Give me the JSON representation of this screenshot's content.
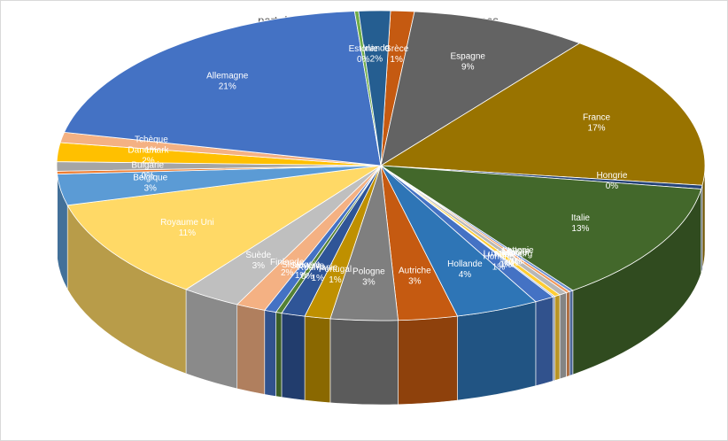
{
  "chart_data": {
    "type": "pie",
    "title": "part de chaque pays aux recettes européennes",
    "categories": [
      "Grèce",
      "Espagne",
      "France",
      "Hongrie",
      "Italie",
      "Lettonie",
      "Chypre",
      "Lituanie",
      "Luxembourg",
      "Malte",
      "Hongrie",
      "Hollande",
      "Autriche",
      "Pologne",
      "Portugal",
      "Roumanie",
      "Slovénie",
      "Slovaquie",
      "Finlande",
      "Suède",
      "Royaume Uni",
      "Belgique",
      "Bulgarie",
      null,
      "Danemark",
      "Tchèque",
      "Allemagne",
      "Estonie",
      "Irlande"
    ],
    "values": [
      1.2,
      9,
      16.8,
      0.4,
      12.7,
      0.2,
      0.2,
      0.4,
      0.3,
      0.1,
      1,
      4.2,
      3,
      3.4,
      1.3,
      1.2,
      0.3,
      0.6,
      1.5,
      3,
      10.8,
      3.3,
      0.3,
      1,
      2,
      1.1,
      20.6,
      0.2,
      1.6
    ],
    "value_labels": [
      "1%",
      "9%",
      "17%",
      "0%",
      "13%",
      "0%",
      "0%",
      "0%",
      "0%",
      "0%",
      "1%",
      "4%",
      "3%",
      "3%",
      "1%",
      "1%",
      "0%",
      "1%",
      "2%",
      "3%",
      "11%",
      "3%",
      "0%",
      null,
      "2%",
      "1%",
      "21%",
      "0%",
      "2%"
    ],
    "colors": [
      "#c55a11",
      "#636363",
      "#997300",
      "#264478",
      "#43682b",
      "#698ed0",
      "#f1975a",
      "#b7b7b7",
      "#ffcd33",
      "#8faadc",
      "#4472c4",
      "#2e75b6",
      "#c55a11",
      "#7f7f7f",
      "#bf9000",
      "#2f5597",
      "#548235",
      "#4472c4",
      "#f4b183",
      "#bfbfbf",
      "#ffd966",
      "#5b9bd5",
      "#ed7d31",
      "#a5a5a5",
      "#ffc000",
      "#f4b183",
      "#4472c4",
      "#70ad47",
      "#255e91"
    ]
  }
}
